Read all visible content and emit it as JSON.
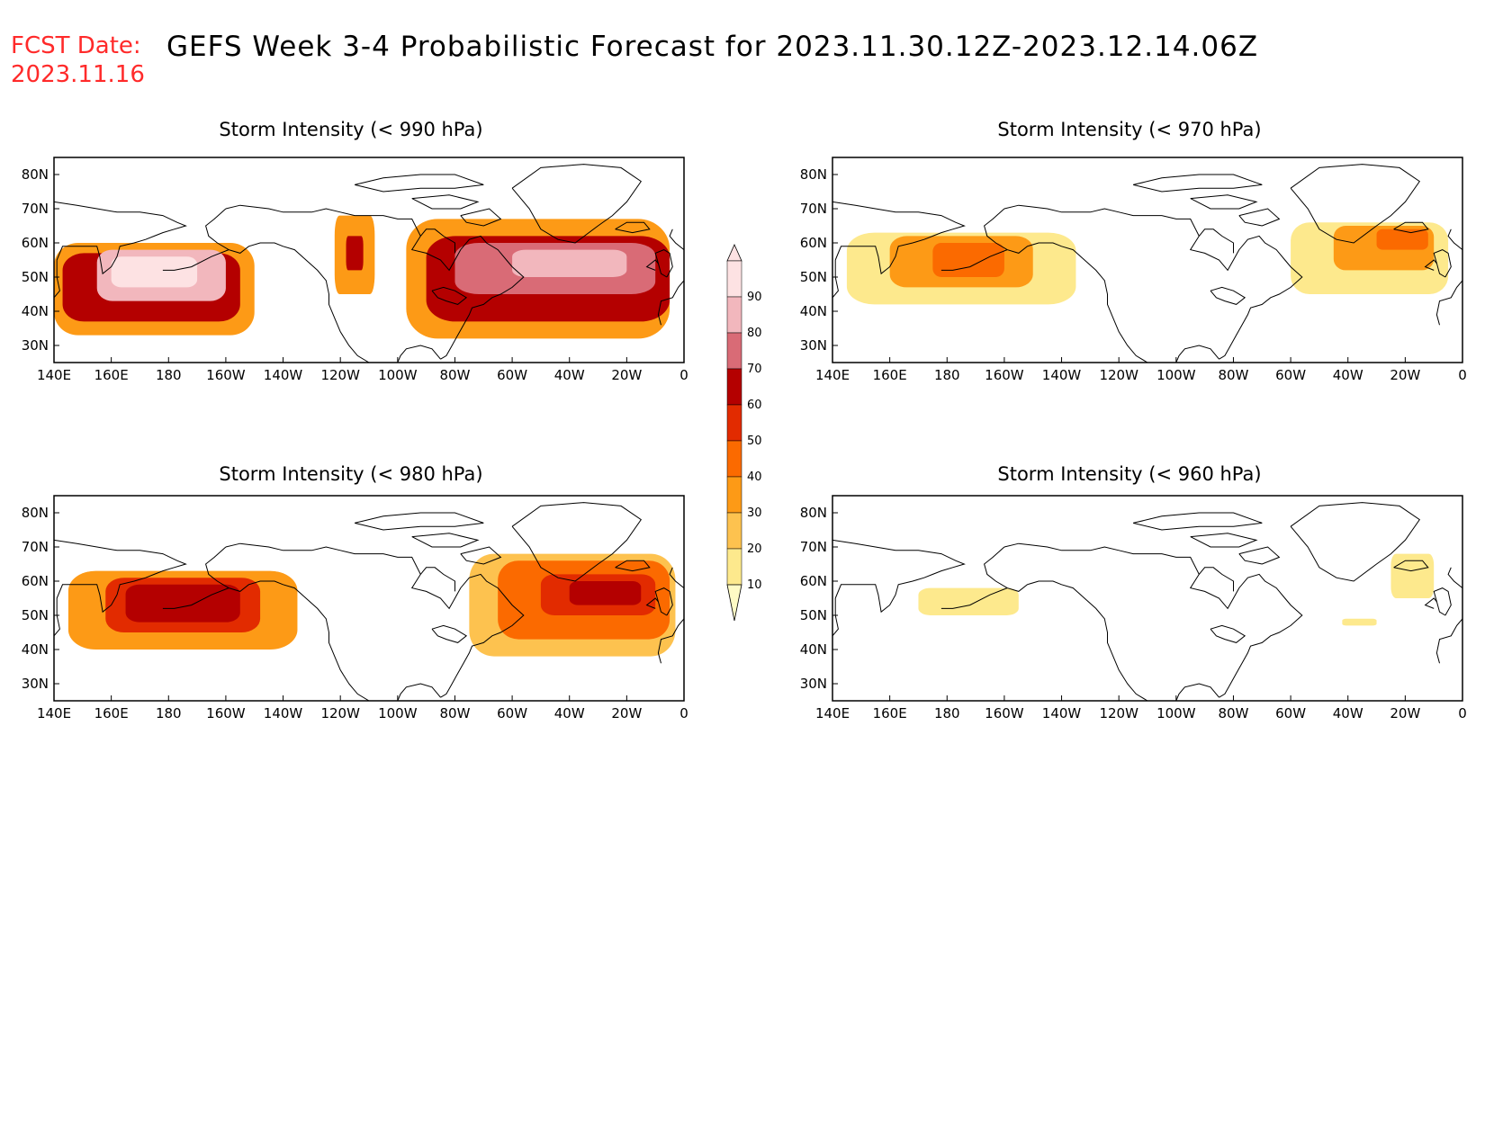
{
  "header": {
    "fcst_label": "FCST Date:",
    "fcst_date": "2023.11.16",
    "title": "GEFS Week 3-4 Probabilistic Forecast for 2023.11.30.12Z-2023.12.14.06Z"
  },
  "axes": {
    "lon_labels": [
      "140E",
      "160E",
      "180",
      "160W",
      "140W",
      "120W",
      "100W",
      "80W",
      "60W",
      "40W",
      "20W",
      "0"
    ],
    "lat_labels": [
      "80N",
      "70N",
      "60N",
      "50N",
      "40N",
      "30N"
    ]
  },
  "colors": {
    "levels": [
      "#fffbc5",
      "#fde98d",
      "#fdc24f",
      "#fd9a16",
      "#fb6a00",
      "#e22b00",
      "#b40000",
      "#d96b76",
      "#f2b7bd",
      "#fde2e3"
    ],
    "coastline": "#000000"
  },
  "colorbar": {
    "labels": [
      "90",
      "80",
      "70",
      "60",
      "50",
      "40",
      "30",
      "20",
      "10"
    ]
  },
  "panels": [
    {
      "id": "p990",
      "title": "Storm Intensity (< 990 hPa)",
      "regions": [
        {
          "lon": [
            140,
            210
          ],
          "lat": [
            33,
            60
          ],
          "level": 3
        },
        {
          "lon": [
            143,
            205
          ],
          "lat": [
            37,
            57
          ],
          "level": 6
        },
        {
          "lon": [
            155,
            200
          ],
          "lat": [
            43,
            58
          ],
          "level": 8
        },
        {
          "lon": [
            160,
            190
          ],
          "lat": [
            47,
            56
          ],
          "level": 9
        },
        {
          "lon": [
            238,
            252
          ],
          "lat": [
            45,
            68
          ],
          "level": 3
        },
        {
          "lon": [
            242,
            248
          ],
          "lat": [
            52,
            62
          ],
          "level": 6
        },
        {
          "lon": [
            263,
            355
          ],
          "lat": [
            32,
            67
          ],
          "level": 3
        },
        {
          "lon": [
            270,
            355
          ],
          "lat": [
            37,
            62
          ],
          "level": 6
        },
        {
          "lon": [
            280,
            350
          ],
          "lat": [
            45,
            60
          ],
          "level": 7
        },
        {
          "lon": [
            300,
            340
          ],
          "lat": [
            50,
            58
          ],
          "level": 8
        }
      ]
    },
    {
      "id": "p970",
      "title": "Storm Intensity (< 970 hPa)",
      "regions": [
        {
          "lon": [
            145,
            225
          ],
          "lat": [
            42,
            63
          ],
          "level": 1
        },
        {
          "lon": [
            160,
            210
          ],
          "lat": [
            47,
            62
          ],
          "level": 3
        },
        {
          "lon": [
            175,
            200
          ],
          "lat": [
            50,
            60
          ],
          "level": 4
        },
        {
          "lon": [
            300,
            355
          ],
          "lat": [
            45,
            66
          ],
          "level": 1
        },
        {
          "lon": [
            315,
            350
          ],
          "lat": [
            52,
            65
          ],
          "level": 3
        },
        {
          "lon": [
            330,
            348
          ],
          "lat": [
            58,
            64
          ],
          "level": 4
        }
      ]
    },
    {
      "id": "p980",
      "title": "Storm Intensity (< 980 hPa)",
      "regions": [
        {
          "lon": [
            145,
            225
          ],
          "lat": [
            40,
            63
          ],
          "level": 3
        },
        {
          "lon": [
            158,
            212
          ],
          "lat": [
            45,
            61
          ],
          "level": 5
        },
        {
          "lon": [
            165,
            205
          ],
          "lat": [
            48,
            59
          ],
          "level": 6
        },
        {
          "lon": [
            285,
            357
          ],
          "lat": [
            38,
            68
          ],
          "level": 2
        },
        {
          "lon": [
            295,
            355
          ],
          "lat": [
            43,
            66
          ],
          "level": 4
        },
        {
          "lon": [
            310,
            350
          ],
          "lat": [
            50,
            62
          ],
          "level": 5
        },
        {
          "lon": [
            320,
            345
          ],
          "lat": [
            53,
            60
          ],
          "level": 6
        }
      ]
    },
    {
      "id": "p960",
      "title": "Storm Intensity (< 960 hPa)",
      "regions": [
        {
          "lon": [
            170,
            205
          ],
          "lat": [
            50,
            58
          ],
          "level": 1
        },
        {
          "lon": [
            335,
            350
          ],
          "lat": [
            55,
            68
          ],
          "level": 1
        },
        {
          "lon": [
            318,
            330
          ],
          "lat": [
            47,
            49
          ],
          "level": 1
        }
      ]
    }
  ]
}
